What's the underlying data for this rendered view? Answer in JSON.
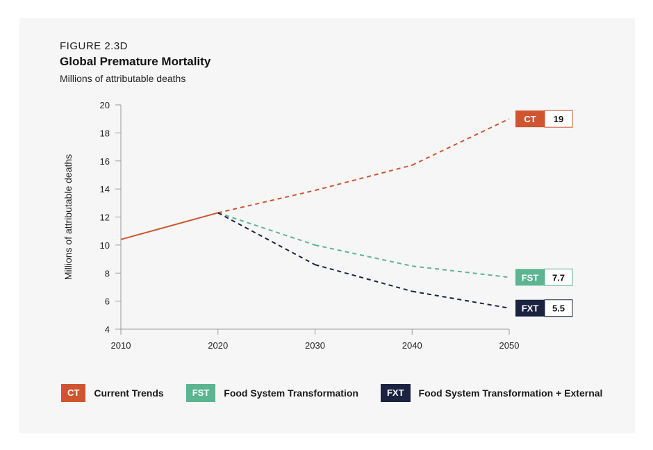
{
  "figure": {
    "label": "FIGURE 2.3D",
    "title": "Global Premature Mortality",
    "subtitle": "Millions of attributable deaths"
  },
  "colors": {
    "ct": "#cf5530",
    "fst": "#5cb491",
    "fxt": "#1b2340",
    "axis": "#9a9a9a"
  },
  "chart_data": {
    "type": "line",
    "x": [
      2010,
      2020,
      2030,
      2040,
      2050
    ],
    "xlim": [
      2010,
      2050
    ],
    "ylim": [
      4,
      20
    ],
    "xticks": [
      2010,
      2020,
      2030,
      2040,
      2050
    ],
    "yticks": [
      4,
      6,
      8,
      10,
      12,
      14,
      16,
      18,
      20
    ],
    "ylabel": "Millions of attributable deaths",
    "grid": false,
    "series": [
      {
        "name": "Current Trends",
        "abbr": "CT",
        "key": "ct",
        "values": [
          10.4,
          12.3,
          13.9,
          15.7,
          19.0
        ],
        "end_label": "19"
      },
      {
        "name": "Food System Transformation",
        "abbr": "FST",
        "key": "fst",
        "values": [
          null,
          12.3,
          10.0,
          8.5,
          7.7
        ],
        "end_label": "7.7"
      },
      {
        "name": "Food System Transformation + External",
        "abbr": "FXT",
        "key": "fxt",
        "values": [
          null,
          12.3,
          8.6,
          6.7,
          5.5
        ],
        "end_label": "5.5"
      }
    ],
    "style_note": "solid line for historical segment 2010-2020, dashed for projections"
  },
  "legend": [
    {
      "abbr": "CT",
      "label": "Current Trends",
      "key": "ct"
    },
    {
      "abbr": "FST",
      "label": "Food System Transformation",
      "key": "fst"
    },
    {
      "abbr": "FXT",
      "label": "Food System Transformation + External",
      "key": "fxt"
    }
  ]
}
